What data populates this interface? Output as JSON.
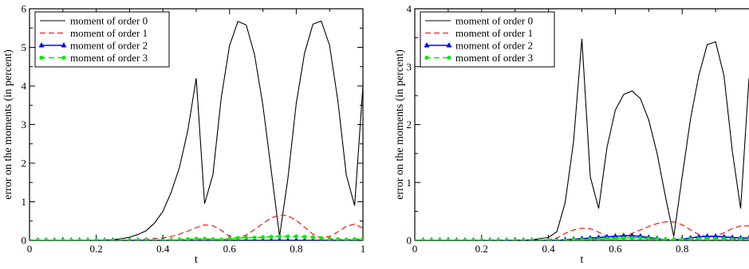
{
  "chart_data": [
    {
      "type": "line",
      "xlabel": "t",
      "ylabel": "error on the moments (in percent)",
      "xlim": [
        0,
        1
      ],
      "ylim": [
        0,
        6
      ],
      "xticks": [
        0,
        0.2,
        0.4,
        0.6,
        0.8,
        1
      ],
      "xtick_labels": [
        "0",
        "0.2",
        "0.4",
        "0.6",
        "0.8",
        "1"
      ],
      "yticks": [
        0,
        1,
        2,
        3,
        4,
        5,
        6
      ],
      "ytick_labels": [
        "0",
        "1",
        "2",
        "3",
        "4",
        "5",
        "6"
      ],
      "legend_position": "top-left",
      "grid": false,
      "series": [
        {
          "name": "moment of order 0",
          "color": "#000000",
          "style": "solid",
          "marker": "none",
          "x": [
            0,
            0.025,
            0.05,
            0.075,
            0.1,
            0.125,
            0.15,
            0.175,
            0.2,
            0.225,
            0.25,
            0.275,
            0.3,
            0.325,
            0.35,
            0.375,
            0.4,
            0.425,
            0.45,
            0.475,
            0.5,
            0.525,
            0.55,
            0.575,
            0.6,
            0.625,
            0.65,
            0.675,
            0.7,
            0.725,
            0.75,
            0.775,
            0.8,
            0.825,
            0.85,
            0.875,
            0.9,
            0.925,
            0.95,
            0.975,
            1
          ],
          "y": [
            0,
            0,
            0,
            0,
            0,
            0,
            0,
            0,
            0,
            0.01,
            0.02,
            0.04,
            0.08,
            0.15,
            0.25,
            0.45,
            0.75,
            1.25,
            1.9,
            2.85,
            4.2,
            0.95,
            1.7,
            3.7,
            5.05,
            5.67,
            5.58,
            4.8,
            3.5,
            1.8,
            0.1,
            1.6,
            3.55,
            4.85,
            5.6,
            5.68,
            5.05,
            3.6,
            1.7,
            0.9,
            4.0
          ]
        },
        {
          "name": "moment of order 1",
          "color": "#ff0000",
          "style": "dashed",
          "marker": "none",
          "x": [
            0,
            0.1,
            0.2,
            0.3,
            0.35,
            0.4,
            0.425,
            0.45,
            0.475,
            0.5,
            0.525,
            0.55,
            0.575,
            0.6,
            0.625,
            0.65,
            0.675,
            0.7,
            0.725,
            0.75,
            0.775,
            0.8,
            0.825,
            0.85,
            0.875,
            0.9,
            0.925,
            0.95,
            0.975,
            1
          ],
          "y": [
            0,
            0,
            0,
            0.01,
            0.03,
            0.06,
            0.1,
            0.16,
            0.24,
            0.33,
            0.4,
            0.38,
            0.26,
            0.1,
            0.05,
            0.14,
            0.28,
            0.44,
            0.58,
            0.66,
            0.64,
            0.52,
            0.34,
            0.16,
            0.06,
            0.1,
            0.22,
            0.36,
            0.42,
            0.32
          ]
        },
        {
          "name": "moment of order 2",
          "color": "#0000ff",
          "style": "solid",
          "marker": "triangle",
          "x": [
            0,
            0.025,
            0.05,
            0.075,
            0.1,
            0.125,
            0.15,
            0.175,
            0.2,
            0.225,
            0.25,
            0.275,
            0.3,
            0.325,
            0.35,
            0.375,
            0.4,
            0.425,
            0.45,
            0.475,
            0.5,
            0.525,
            0.55,
            0.575,
            0.6,
            0.625,
            0.65,
            0.675,
            0.7,
            0.725,
            0.75,
            0.775,
            0.8,
            0.825,
            0.85,
            0.875,
            0.9,
            0.925,
            0.95,
            0.975,
            1
          ],
          "y": [
            0,
            0,
            0,
            0,
            0,
            0,
            0,
            0,
            0,
            0,
            0,
            0,
            0,
            0,
            0,
            0,
            0,
            0,
            0,
            0,
            0,
            0,
            0,
            0,
            0,
            0,
            0,
            0,
            0,
            0,
            0,
            0,
            0,
            0,
            0,
            0,
            0,
            0,
            0,
            0,
            0
          ]
        },
        {
          "name": "moment of order 3",
          "color": "#00ee00",
          "style": "dashed",
          "marker": "circle",
          "x": [
            0,
            0.025,
            0.05,
            0.075,
            0.1,
            0.125,
            0.15,
            0.175,
            0.2,
            0.225,
            0.25,
            0.275,
            0.3,
            0.325,
            0.35,
            0.375,
            0.4,
            0.425,
            0.45,
            0.475,
            0.5,
            0.525,
            0.55,
            0.575,
            0.6,
            0.625,
            0.65,
            0.675,
            0.7,
            0.725,
            0.75,
            0.775,
            0.8,
            0.825,
            0.85,
            0.875,
            0.9,
            0.925,
            0.95,
            0.975,
            1
          ],
          "y": [
            0,
            0,
            0,
            0,
            0,
            0,
            0,
            0,
            0,
            0,
            0,
            0,
            0,
            0,
            0,
            0,
            0,
            0.01,
            0.02,
            0.03,
            0.04,
            0.04,
            0.03,
            0.02,
            0.04,
            0.06,
            0.07,
            0.07,
            0.08,
            0.09,
            0.1,
            0.1,
            0.1,
            0.09,
            0.08,
            0.06,
            0.04,
            0.03,
            0.02,
            0.03,
            0.04
          ]
        }
      ]
    },
    {
      "type": "line",
      "xlabel": "t",
      "ylabel": "error on the moments (in percent)",
      "xlim": [
        0,
        1
      ],
      "ylim": [
        0,
        4
      ],
      "xticks": [
        0,
        0.2,
        0.4,
        0.6,
        0.8
      ],
      "xtick_labels": [
        "0",
        "0.2",
        "0.4",
        "0.6",
        "0.8"
      ],
      "yticks": [
        0,
        1,
        2,
        3,
        4
      ],
      "ytick_labels": [
        "0",
        "1",
        "2",
        "3",
        "4"
      ],
      "legend_position": "top-left",
      "grid": false,
      "series": [
        {
          "name": "moment of order 0",
          "color": "#000000",
          "style": "solid",
          "marker": "none",
          "x": [
            0,
            0.05,
            0.1,
            0.15,
            0.2,
            0.25,
            0.3,
            0.35,
            0.4,
            0.425,
            0.45,
            0.475,
            0.5,
            0.525,
            0.55,
            0.575,
            0.6,
            0.625,
            0.65,
            0.675,
            0.7,
            0.725,
            0.75,
            0.775,
            0.8,
            0.825,
            0.85,
            0.875,
            0.9,
            0.925,
            0.95,
            0.975,
            1
          ],
          "y": [
            0,
            0,
            0,
            0,
            0,
            0,
            0,
            0.01,
            0.05,
            0.15,
            0.65,
            1.7,
            3.48,
            1.1,
            0.55,
            1.6,
            2.25,
            2.52,
            2.58,
            2.45,
            2.08,
            1.5,
            0.75,
            0.07,
            1.1,
            2.1,
            2.85,
            3.38,
            3.43,
            2.85,
            1.55,
            0.55,
            2.8
          ]
        },
        {
          "name": "moment of order 1",
          "color": "#ff0000",
          "style": "dashed",
          "marker": "none",
          "x": [
            0,
            0.1,
            0.2,
            0.3,
            0.4,
            0.425,
            0.45,
            0.475,
            0.5,
            0.525,
            0.55,
            0.575,
            0.6,
            0.625,
            0.65,
            0.675,
            0.7,
            0.725,
            0.75,
            0.775,
            0.8,
            0.825,
            0.85,
            0.875,
            0.9,
            0.925,
            0.95,
            0.975,
            1
          ],
          "y": [
            0,
            0,
            0,
            0,
            0.01,
            0.04,
            0.12,
            0.18,
            0.21,
            0.2,
            0.14,
            0.07,
            0.04,
            0.06,
            0.12,
            0.18,
            0.24,
            0.29,
            0.32,
            0.32,
            0.27,
            0.18,
            0.1,
            0.06,
            0.07,
            0.13,
            0.2,
            0.25,
            0.25
          ]
        },
        {
          "name": "moment of order 2",
          "color": "#0000ff",
          "style": "solid",
          "marker": "triangle",
          "x": [
            0,
            0.025,
            0.05,
            0.075,
            0.1,
            0.125,
            0.15,
            0.175,
            0.2,
            0.225,
            0.25,
            0.275,
            0.3,
            0.325,
            0.35,
            0.375,
            0.4,
            0.425,
            0.45,
            0.475,
            0.5,
            0.525,
            0.55,
            0.575,
            0.6,
            0.625,
            0.65,
            0.675,
            0.7,
            0.725,
            0.75,
            0.775,
            0.8,
            0.825,
            0.85,
            0.875,
            0.9,
            0.925,
            0.95,
            0.975,
            1
          ],
          "y": [
            0,
            0,
            0,
            0,
            0,
            0,
            0,
            0,
            0,
            0,
            0,
            0,
            0,
            0,
            0,
            0,
            0,
            0,
            0.01,
            0.02,
            0.03,
            0.04,
            0.05,
            0.06,
            0.07,
            0.08,
            0.08,
            0.07,
            0.05,
            0.03,
            0.01,
            0.01,
            0.02,
            0.04,
            0.06,
            0.07,
            0.07,
            0.06,
            0.05,
            0.04,
            0.04
          ]
        },
        {
          "name": "moment of order 3",
          "color": "#00ee00",
          "style": "dashed",
          "marker": "circle",
          "x": [
            0,
            0.025,
            0.05,
            0.075,
            0.1,
            0.125,
            0.15,
            0.175,
            0.2,
            0.225,
            0.25,
            0.275,
            0.3,
            0.325,
            0.35,
            0.375,
            0.4,
            0.425,
            0.45,
            0.475,
            0.5,
            0.525,
            0.55,
            0.575,
            0.6,
            0.625,
            0.65,
            0.675,
            0.7,
            0.725,
            0.75,
            0.775,
            0.8,
            0.825,
            0.85,
            0.875,
            0.9,
            0.925,
            0.95,
            0.975,
            1
          ],
          "y": [
            0,
            0,
            0,
            0,
            0,
            0,
            0,
            0,
            0,
            0,
            0,
            0,
            0,
            0,
            0,
            0,
            0,
            0,
            0,
            0.01,
            0.01,
            0.02,
            0.02,
            0.03,
            0.03,
            0.04,
            0.04,
            0.04,
            0.03,
            0.02,
            0.01,
            0.01,
            0.01,
            0.02,
            0.03,
            0.03,
            0.03,
            0.03,
            0.02,
            0.02,
            0.02
          ]
        }
      ]
    }
  ]
}
